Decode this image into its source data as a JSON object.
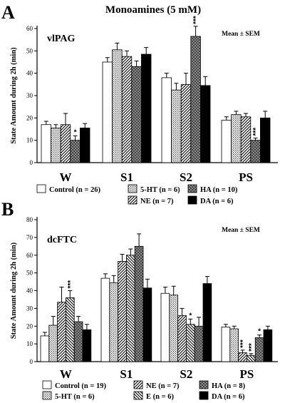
{
  "figure_title": "Monoamines  (5 mM)",
  "chart_data": [
    {
      "type": "bar",
      "panel_label": "A",
      "region_label": "vlPAG",
      "stat_label": "Mean ± SEM",
      "ylabel": "State  Amount  during  2h  (min)",
      "ylim": [
        0,
        60
      ],
      "yticks": [
        0,
        10,
        20,
        30,
        40,
        50,
        60
      ],
      "categories": [
        "W",
        "S1",
        "S2",
        "PS"
      ],
      "series": [
        {
          "key": "control",
          "name": "Control (n = 26)",
          "pattern": "white",
          "values": [
            17,
            45,
            38,
            19
          ],
          "err": [
            1.5,
            2,
            2,
            1.5
          ],
          "sig": [
            "",
            "",
            "",
            ""
          ]
        },
        {
          "key": "5ht",
          "name": "5-HT    (n = 6)",
          "pattern": "dots",
          "values": [
            15.5,
            50.5,
            32.5,
            21.5
          ],
          "err": [
            1.5,
            3,
            3,
            1.5
          ],
          "sig": [
            "",
            "",
            "",
            ""
          ]
        },
        {
          "key": "ne",
          "name": "NE      (n = 7)",
          "pattern": "diag",
          "values": [
            17,
            47.5,
            35,
            20.5
          ],
          "err": [
            5,
            2.5,
            5,
            1.5
          ],
          "sig": [
            "",
            "",
            "",
            ""
          ]
        },
        {
          "key": "ha",
          "name": "HA (n = 10)",
          "pattern": "cross",
          "values": [
            10,
            43,
            56.5,
            10
          ],
          "err": [
            2,
            2.5,
            4.5,
            1
          ],
          "sig": [
            "*",
            "",
            "***",
            "***"
          ]
        },
        {
          "key": "da",
          "name": "DA (n = 6)",
          "pattern": "black",
          "values": [
            15.5,
            48.5,
            34.5,
            20
          ],
          "err": [
            2,
            3,
            4,
            3
          ],
          "sig": [
            "",
            "",
            "",
            ""
          ]
        }
      ]
    },
    {
      "type": "bar",
      "panel_label": "B",
      "region_label": "dcFTC",
      "stat_label": "Mean ± SEM",
      "ylabel": "State  Amount  during  2h  (min)",
      "ylim": [
        0,
        80
      ],
      "yticks": [
        0,
        10,
        20,
        30,
        40,
        50,
        60,
        70,
        80
      ],
      "categories": [
        "W",
        "S1",
        "S2",
        "PS"
      ],
      "series": [
        {
          "key": "control",
          "name": "Control (n = 19)",
          "pattern": "white",
          "values": [
            14.5,
            47,
            38.5,
            19.5
          ],
          "err": [
            2,
            2.5,
            3.5,
            1.5
          ],
          "sig": [
            "",
            "",
            "",
            ""
          ]
        },
        {
          "key": "5ht",
          "name": "5-HT   (n = 6)",
          "pattern": "dots",
          "values": [
            20.5,
            44.5,
            37.5,
            18.5
          ],
          "err": [
            5,
            4,
            5,
            1.5
          ],
          "sig": [
            "",
            "",
            "",
            ""
          ]
        },
        {
          "key": "ne",
          "name": "NE     (n = 7)",
          "pattern": "diag",
          "values": [
            33.5,
            56.5,
            26,
            5
          ],
          "err": [
            8.5,
            4,
            4,
            1.5
          ],
          "sig": [
            "",
            "",
            "",
            "***"
          ]
        },
        {
          "key": "e",
          "name": "E      (n = 6)",
          "pattern": "diag2",
          "values": [
            36,
            60,
            21,
            3.5
          ],
          "err": [
            4,
            3.5,
            3,
            1
          ],
          "sig": [
            "***",
            "",
            "*",
            "***"
          ]
        },
        {
          "key": "ha",
          "name": "HA  (n = 8)",
          "pattern": "cross",
          "values": [
            22.5,
            65,
            20,
            13.5
          ],
          "err": [
            3,
            7,
            5,
            1.5
          ],
          "sig": [
            "",
            "",
            "",
            "*"
          ]
        },
        {
          "key": "da",
          "name": "DA  (n = 6)",
          "pattern": "black",
          "values": [
            18,
            41.5,
            44,
            18
          ],
          "err": [
            3,
            5,
            4,
            2
          ],
          "sig": [
            "",
            "",
            "",
            ""
          ]
        }
      ]
    }
  ]
}
